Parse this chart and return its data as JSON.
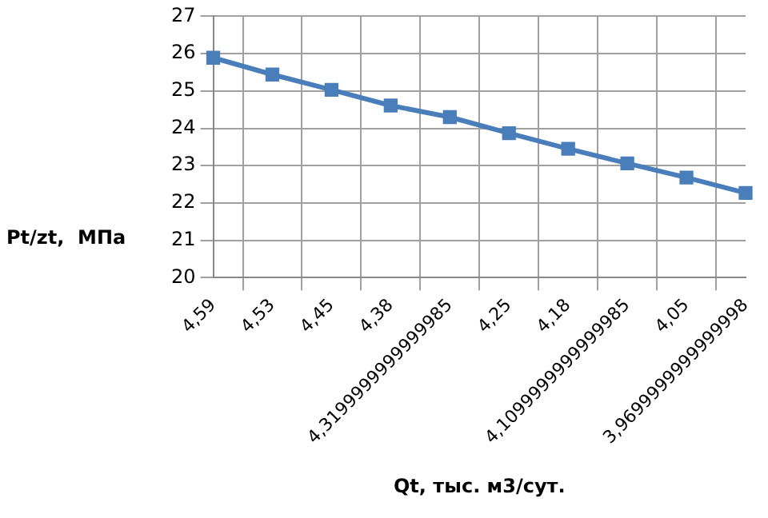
{
  "chart_data": {
    "type": "line",
    "xlabel": "Qt, тыс. м3/сут.",
    "ylabel": "Pt/zt,  МПа",
    "categories": [
      "4,59",
      "4,53",
      "4,45",
      "4,38",
      "4,3199999999999985",
      "4,25",
      "4,18",
      "4,1099999999999985",
      "4,05",
      "3,9699999999999998"
    ],
    "series": [
      {
        "color": "#4a7ebb",
        "values": [
          25.89,
          25.44,
          25.03,
          24.61,
          24.3,
          23.87,
          23.45,
          23.06,
          22.68,
          22.27
        ]
      }
    ],
    "ylim": [
      20,
      27
    ],
    "yticks": [
      20,
      21,
      22,
      23,
      24,
      25,
      26,
      27
    ],
    "grid": true,
    "legend": false,
    "marker": "square",
    "line_style": "solid"
  }
}
